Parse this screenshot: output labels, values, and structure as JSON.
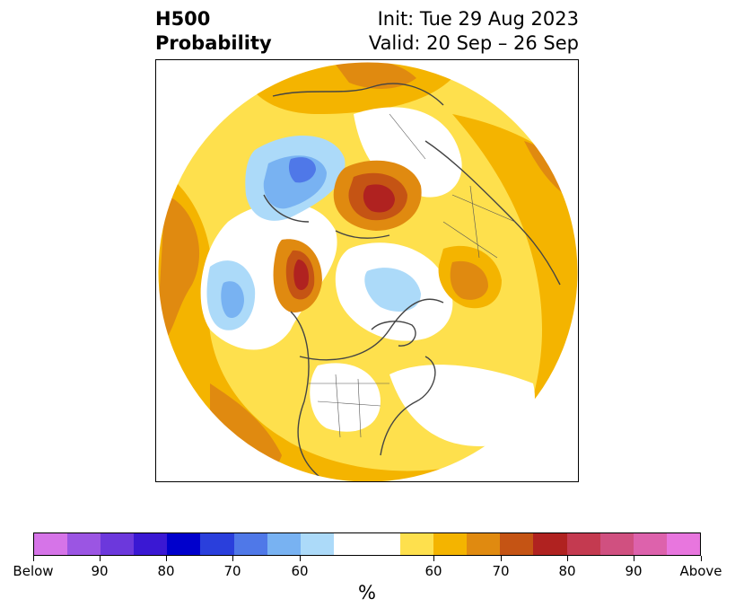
{
  "header": {
    "title_line1": "H500",
    "title_line2": "Probability",
    "init": "Init: Tue 29 Aug 2023",
    "valid": "Valid: 20 Sep – 26 Sep"
  },
  "colorbar": {
    "colors": [
      "#d674e8",
      "#9b55e3",
      "#6c38dc",
      "#3a18d3",
      "#0000cc",
      "#2a3fdc",
      "#4f78e8",
      "#78b2f2",
      "#acdaf9",
      "#ffffff",
      "#fee04d",
      "#f4b400",
      "#e08a10",
      "#c55414",
      "#b02220",
      "#c43a50",
      "#d05080",
      "#dd62ac",
      "#e876de"
    ],
    "tick_labels": [
      "Below",
      "90",
      "80",
      "70",
      "60",
      "60",
      "70",
      "80",
      "90",
      "Above"
    ],
    "unit": "%"
  }
}
